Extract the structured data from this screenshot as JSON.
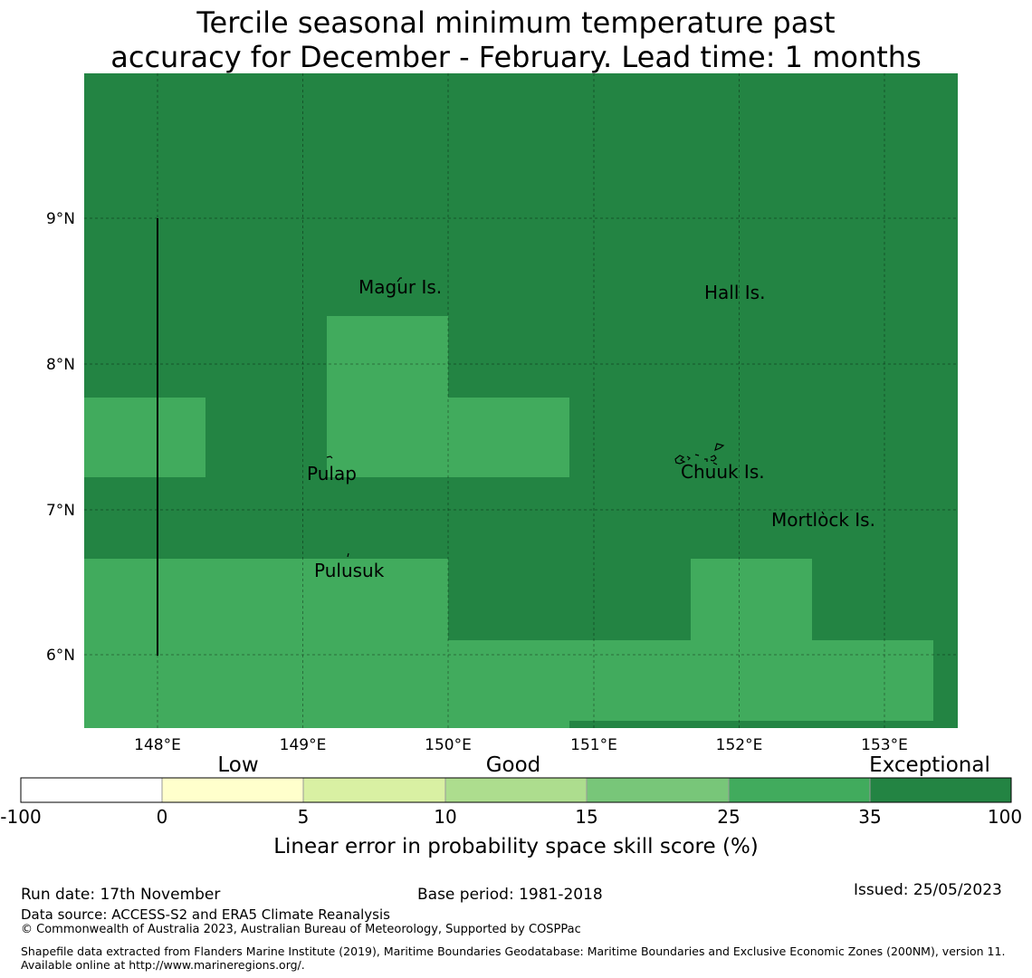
{
  "title": {
    "line1": "Tercile seasonal minimum temperature past",
    "line2": "accuracy for December - February. Lead time: 1 months"
  },
  "map": {
    "x_ticks": [
      "148°E",
      "149°E",
      "150°E",
      "151°E",
      "152°E",
      "153°E"
    ],
    "y_ticks": [
      "9°N",
      "8°N",
      "7°N",
      "6°N"
    ],
    "labels": [
      "Magur Is.",
      "Hall Is.",
      "Pulap",
      "Chuuk Is.",
      "Mortlock Is.",
      "Pulusuk"
    ],
    "colors": {
      "exceptional": "#238443",
      "good_high": "#41ab5d"
    }
  },
  "colorbar": {
    "ticks": [
      "-100",
      "0",
      "5",
      "10",
      "15",
      "25",
      "35",
      "100"
    ],
    "colors": [
      "#ffffff",
      "#ffffcc",
      "#d9f0a3",
      "#addd8e",
      "#78c679",
      "#41ab5d",
      "#238443"
    ],
    "categories": [
      "Low",
      "Good",
      "Exceptional"
    ],
    "label": "Linear error in probability space skill score (%)"
  },
  "footer": {
    "run_date": "Run date: 17th November",
    "base_period": "Base period: 1981-2018",
    "issued": "Issued: 25/05/2023",
    "data_source": "Data source: ACCESS-S2 and ERA5 Climate Reanalysis",
    "copyright": "© Commonwealth of Australia 2023, Australian Bureau of Meteorology, Supported by COSPPac",
    "shapefile": "Shapefile data extracted from Flanders Marine Institute (2019), Maritime Boundaries Geodatabase: Maritime Boundaries and Exclusive Economic Zones (200NM), version 11. Available online at http://www.marineregions.org/."
  }
}
